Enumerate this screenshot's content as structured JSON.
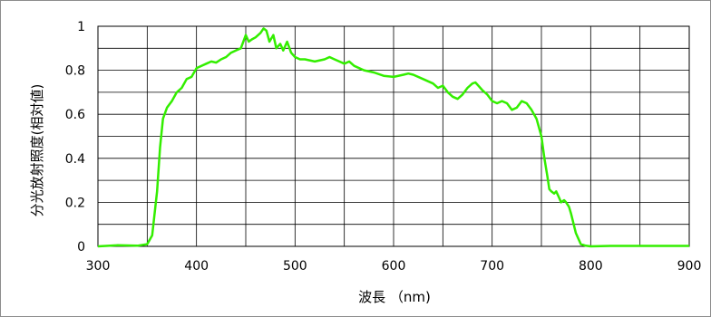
{
  "chart_data": {
    "type": "line",
    "title": "",
    "xlabel": "波長 （nm)",
    "ylabel": "分光放射照度(相対値)",
    "xlim": [
      300,
      900
    ],
    "ylim": [
      0,
      1
    ],
    "x_ticks": [
      300,
      400,
      500,
      600,
      700,
      800,
      900
    ],
    "x_tick_labels": [
      "300",
      "400",
      "500",
      "600",
      "700",
      "800",
      "900"
    ],
    "y_ticks": [
      0,
      0.2,
      0.4,
      0.6,
      0.8,
      1
    ],
    "y_tick_labels": [
      "0",
      "0.2",
      "0.4",
      "0.6",
      "0.8",
      "1"
    ],
    "grid": true,
    "legend": "none",
    "line_color": "#33ee00",
    "series": [
      {
        "x": [
          300,
          320,
          340,
          350,
          355,
          360,
          363,
          366,
          370,
          375,
          380,
          385,
          390,
          395,
          400,
          405,
          410,
          415,
          420,
          425,
          430,
          435,
          440,
          445,
          450,
          453,
          456,
          460,
          465,
          468,
          471,
          474,
          478,
          481,
          485,
          488,
          492,
          496,
          500,
          505,
          510,
          520,
          530,
          535,
          540,
          545,
          550,
          555,
          560,
          570,
          580,
          590,
          600,
          610,
          615,
          620,
          630,
          640,
          645,
          650,
          655,
          660,
          665,
          670,
          675,
          680,
          683,
          686,
          690,
          695,
          700,
          705,
          710,
          715,
          720,
          725,
          730,
          735,
          740,
          745,
          750,
          753,
          756,
          758,
          760,
          763,
          765,
          768,
          770,
          773,
          775,
          778,
          780,
          785,
          790,
          795,
          800,
          820,
          860,
          900
        ],
        "y": [
          0.0,
          0.005,
          0.003,
          0.01,
          0.05,
          0.25,
          0.45,
          0.58,
          0.63,
          0.66,
          0.7,
          0.72,
          0.76,
          0.77,
          0.81,
          0.82,
          0.83,
          0.84,
          0.835,
          0.85,
          0.86,
          0.88,
          0.89,
          0.9,
          0.96,
          0.93,
          0.94,
          0.95,
          0.97,
          0.99,
          0.98,
          0.93,
          0.96,
          0.9,
          0.92,
          0.89,
          0.93,
          0.88,
          0.86,
          0.85,
          0.85,
          0.84,
          0.85,
          0.86,
          0.85,
          0.84,
          0.83,
          0.84,
          0.82,
          0.8,
          0.79,
          0.775,
          0.77,
          0.78,
          0.785,
          0.78,
          0.76,
          0.74,
          0.72,
          0.73,
          0.7,
          0.68,
          0.67,
          0.69,
          0.72,
          0.74,
          0.745,
          0.73,
          0.71,
          0.69,
          0.66,
          0.65,
          0.66,
          0.65,
          0.62,
          0.63,
          0.66,
          0.65,
          0.62,
          0.58,
          0.5,
          0.4,
          0.32,
          0.26,
          0.25,
          0.24,
          0.25,
          0.22,
          0.2,
          0.21,
          0.2,
          0.18,
          0.15,
          0.06,
          0.01,
          0.003,
          0.0,
          0.002,
          0.002,
          0.002
        ]
      }
    ]
  }
}
